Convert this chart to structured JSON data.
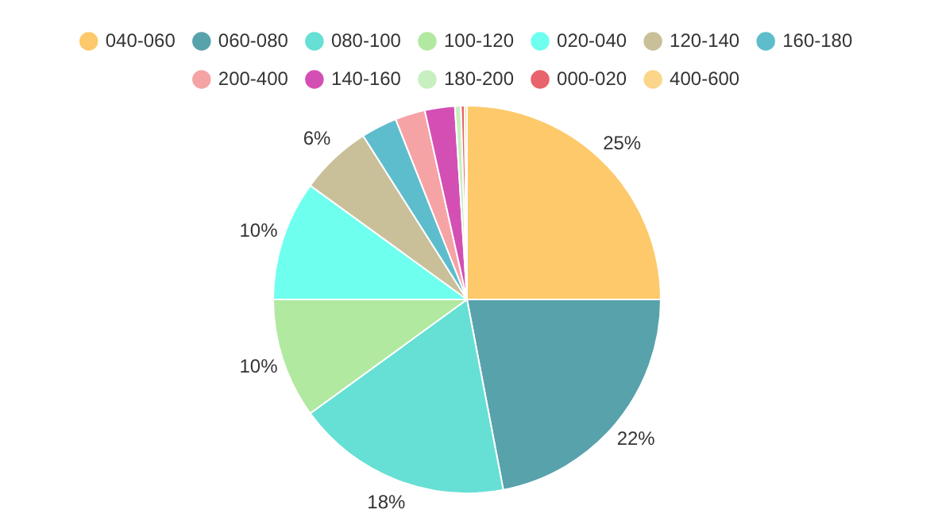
{
  "chart_data": {
    "type": "pie",
    "categories": [
      "040-060",
      "060-080",
      "080-100",
      "100-120",
      "020-040",
      "120-140",
      "160-180",
      "200-400",
      "140-160",
      "180-200",
      "000-020",
      "400-600"
    ],
    "values": [
      25,
      22,
      18,
      10,
      10,
      6,
      3,
      2.5,
      2.5,
      0.5,
      0.3,
      0.2
    ],
    "colors": [
      "#fdc96b",
      "#58a2ab",
      "#66dfd4",
      "#b1e9a0",
      "#6effef",
      "#c9c09a",
      "#5ebdcc",
      "#f6a3a6",
      "#d44fb4",
      "#c8efc0",
      "#e8636b",
      "#fbd58a"
    ],
    "value_labels": [
      "25%",
      "22%",
      "18%",
      "10%",
      "10%",
      "6%",
      null,
      null,
      null,
      null,
      null,
      null
    ],
    "legend": "top"
  }
}
